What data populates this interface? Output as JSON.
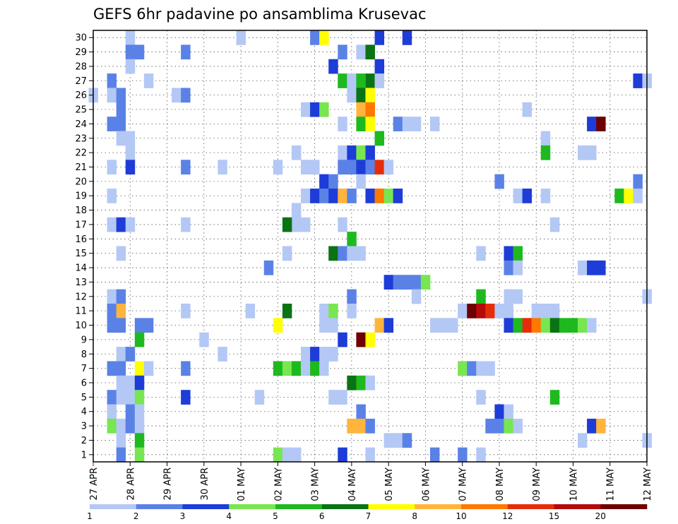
{
  "chart_data": {
    "type": "heatmap",
    "title": "GEFS 6hr padavine po ansamblima Krusevac",
    "xlabel": "",
    "ylabel": "",
    "x_tick_labels": [
      "27 APR",
      "28 APR",
      "29 APR",
      "30 APR",
      "01 MAY",
      "02 MAY",
      "03 MAY",
      "04 MAY",
      "05 MAY",
      "06 MAY",
      "07 MAY",
      "08 MAY",
      "09 MAY",
      "10 MAY",
      "11 MAY",
      "12 MAY"
    ],
    "y_tick_labels": [
      "1",
      "2",
      "3",
      "4",
      "5",
      "6",
      "7",
      "8",
      "9",
      "10",
      "11",
      "12",
      "13",
      "14",
      "15",
      "16",
      "17",
      "18",
      "19",
      "20",
      "21",
      "22",
      "23",
      "24",
      "25",
      "26",
      "27",
      "28",
      "29",
      "30"
    ],
    "x_unit": "6-hour step (0 = 27 APR 00Z)",
    "xlim": [
      0,
      60
    ],
    "ylim": [
      0.5,
      30.5
    ],
    "grid": true,
    "colorbar": {
      "labels": [
        "1",
        "2",
        "3",
        "4",
        "5",
        "6",
        "7",
        "8",
        "10",
        "12",
        "15",
        "20"
      ],
      "colors": [
        "#b4c8f5",
        "#5a82e6",
        "#1e3cd7",
        "#78e650",
        "#1eb91e",
        "#0a7314",
        "#ffff00",
        "#ffb43c",
        "#ff7800",
        "#e62d0a",
        "#b40a0a",
        "#6e0000"
      ]
    },
    "cells": [
      [
        4,
        30,
        1
      ],
      [
        16,
        30,
        1
      ],
      [
        24,
        30,
        2
      ],
      [
        25,
        30,
        7
      ],
      [
        31,
        30,
        3
      ],
      [
        34,
        30,
        3
      ],
      [
        4,
        29,
        2
      ],
      [
        5,
        29,
        2
      ],
      [
        10,
        29,
        2
      ],
      [
        27,
        29,
        2
      ],
      [
        29,
        29,
        1
      ],
      [
        30,
        29,
        6
      ],
      [
        4,
        28,
        1
      ],
      [
        26,
        28,
        3
      ],
      [
        31,
        28,
        3
      ],
      [
        2,
        27,
        2
      ],
      [
        6,
        27,
        1
      ],
      [
        27,
        27,
        5
      ],
      [
        28,
        27,
        1
      ],
      [
        30,
        27,
        6
      ],
      [
        29,
        27,
        5
      ],
      [
        31,
        27,
        1
      ],
      [
        59,
        27,
        3
      ],
      [
        60,
        27,
        1
      ],
      [
        0,
        26,
        1
      ],
      [
        2,
        26,
        1
      ],
      [
        3,
        26,
        2
      ],
      [
        9,
        26,
        1
      ],
      [
        10,
        26,
        2
      ],
      [
        28,
        26,
        1
      ],
      [
        29,
        26,
        6
      ],
      [
        30,
        26,
        7
      ],
      [
        3,
        25,
        2
      ],
      [
        23,
        25,
        1
      ],
      [
        24,
        25,
        3
      ],
      [
        25,
        25,
        4
      ],
      [
        29,
        25,
        8
      ],
      [
        30,
        25,
        9
      ],
      [
        47,
        25,
        1
      ],
      [
        2,
        24,
        2
      ],
      [
        3,
        24,
        2
      ],
      [
        27,
        24,
        1
      ],
      [
        29,
        24,
        5
      ],
      [
        30,
        24,
        7
      ],
      [
        33,
        24,
        2
      ],
      [
        34,
        24,
        1
      ],
      [
        35,
        24,
        1
      ],
      [
        37,
        24,
        1
      ],
      [
        54,
        24,
        3
      ],
      [
        55,
        24,
        12
      ],
      [
        3,
        23,
        1
      ],
      [
        4,
        23,
        1
      ],
      [
        31,
        23,
        5
      ],
      [
        49,
        23,
        1
      ],
      [
        4,
        22,
        1
      ],
      [
        22,
        22,
        1
      ],
      [
        27,
        22,
        1
      ],
      [
        28,
        22,
        3
      ],
      [
        29,
        22,
        4
      ],
      [
        30,
        22,
        3
      ],
      [
        49,
        22,
        5
      ],
      [
        53,
        22,
        1
      ],
      [
        54,
        22,
        1
      ],
      [
        2,
        21,
        1
      ],
      [
        4,
        21,
        3
      ],
      [
        10,
        21,
        2
      ],
      [
        14,
        21,
        1
      ],
      [
        20,
        21,
        1
      ],
      [
        23,
        21,
        1
      ],
      [
        24,
        21,
        1
      ],
      [
        27,
        21,
        2
      ],
      [
        28,
        21,
        2
      ],
      [
        29,
        21,
        3
      ],
      [
        30,
        21,
        2
      ],
      [
        31,
        21,
        10
      ],
      [
        32,
        21,
        1
      ],
      [
        25,
        20,
        3
      ],
      [
        26,
        20,
        2
      ],
      [
        29,
        20,
        1
      ],
      [
        44,
        20,
        2
      ],
      [
        59,
        20,
        2
      ],
      [
        2,
        19,
        1
      ],
      [
        23,
        19,
        1
      ],
      [
        24,
        19,
        3
      ],
      [
        25,
        19,
        2
      ],
      [
        26,
        19,
        3
      ],
      [
        27,
        19,
        8
      ],
      [
        28,
        19,
        2
      ],
      [
        30,
        19,
        3
      ],
      [
        31,
        19,
        9
      ],
      [
        32,
        19,
        4
      ],
      [
        33,
        19,
        3
      ],
      [
        46,
        19,
        1
      ],
      [
        47,
        19,
        3
      ],
      [
        49,
        19,
        1
      ],
      [
        57,
        19,
        5
      ],
      [
        58,
        19,
        7
      ],
      [
        59,
        19,
        1
      ],
      [
        22,
        18,
        1
      ],
      [
        2,
        17,
        1
      ],
      [
        3,
        17,
        3
      ],
      [
        4,
        17,
        1
      ],
      [
        10,
        17,
        1
      ],
      [
        22,
        17,
        1
      ],
      [
        23,
        17,
        1
      ],
      [
        21,
        17,
        6
      ],
      [
        27,
        17,
        1
      ],
      [
        50,
        17,
        1
      ],
      [
        28,
        16,
        5
      ],
      [
        3,
        15,
        1
      ],
      [
        21,
        15,
        1
      ],
      [
        26,
        15,
        6
      ],
      [
        27,
        15,
        2
      ],
      [
        28,
        15,
        1
      ],
      [
        29,
        15,
        1
      ],
      [
        42,
        15,
        1
      ],
      [
        45,
        15,
        3
      ],
      [
        46,
        15,
        5
      ],
      [
        19,
        14,
        2
      ],
      [
        45,
        14,
        2
      ],
      [
        46,
        14,
        1
      ],
      [
        53,
        14,
        1
      ],
      [
        54,
        14,
        3
      ],
      [
        55,
        14,
        3
      ],
      [
        32,
        13,
        3
      ],
      [
        33,
        13,
        2
      ],
      [
        34,
        13,
        2
      ],
      [
        35,
        13,
        2
      ],
      [
        36,
        13,
        4
      ],
      [
        2,
        12,
        1
      ],
      [
        3,
        12,
        2
      ],
      [
        28,
        12,
        2
      ],
      [
        35,
        12,
        1
      ],
      [
        42,
        12,
        5
      ],
      [
        45,
        12,
        1
      ],
      [
        46,
        12,
        1
      ],
      [
        60,
        12,
        1
      ],
      [
        2,
        11,
        2
      ],
      [
        3,
        11,
        8
      ],
      [
        10,
        11,
        1
      ],
      [
        17,
        11,
        1
      ],
      [
        21,
        11,
        6
      ],
      [
        25,
        11,
        1
      ],
      [
        26,
        11,
        4
      ],
      [
        28,
        11,
        1
      ],
      [
        40,
        11,
        1
      ],
      [
        41,
        11,
        12
      ],
      [
        42,
        11,
        11
      ],
      [
        43,
        11,
        10
      ],
      [
        44,
        11,
        1
      ],
      [
        45,
        11,
        1
      ],
      [
        48,
        11,
        1
      ],
      [
        49,
        11,
        1
      ],
      [
        50,
        11,
        1
      ],
      [
        2,
        10,
        2
      ],
      [
        3,
        10,
        2
      ],
      [
        5,
        10,
        2
      ],
      [
        6,
        10,
        2
      ],
      [
        20,
        10,
        7
      ],
      [
        25,
        10,
        1
      ],
      [
        26,
        10,
        1
      ],
      [
        31,
        10,
        8
      ],
      [
        32,
        10,
        3
      ],
      [
        37,
        10,
        1
      ],
      [
        38,
        10,
        1
      ],
      [
        39,
        10,
        1
      ],
      [
        45,
        10,
        3
      ],
      [
        46,
        10,
        5
      ],
      [
        47,
        10,
        10
      ],
      [
        48,
        10,
        9
      ],
      [
        49,
        10,
        4
      ],
      [
        50,
        10,
        6
      ],
      [
        51,
        10,
        5
      ],
      [
        52,
        10,
        5
      ],
      [
        53,
        10,
        4
      ],
      [
        54,
        10,
        1
      ],
      [
        5,
        9,
        5
      ],
      [
        12,
        9,
        1
      ],
      [
        27,
        9,
        3
      ],
      [
        29,
        9,
        12
      ],
      [
        30,
        9,
        7
      ],
      [
        3,
        8,
        1
      ],
      [
        4,
        8,
        2
      ],
      [
        14,
        8,
        1
      ],
      [
        23,
        8,
        1
      ],
      [
        24,
        8,
        3
      ],
      [
        25,
        8,
        1
      ],
      [
        26,
        8,
        1
      ],
      [
        2,
        7,
        2
      ],
      [
        3,
        7,
        2
      ],
      [
        5,
        7,
        7
      ],
      [
        6,
        7,
        1
      ],
      [
        10,
        7,
        2
      ],
      [
        20,
        7,
        5
      ],
      [
        21,
        7,
        4
      ],
      [
        22,
        7,
        5
      ],
      [
        23,
        7,
        1
      ],
      [
        24,
        7,
        5
      ],
      [
        25,
        7,
        1
      ],
      [
        40,
        7,
        4
      ],
      [
        41,
        7,
        2
      ],
      [
        42,
        7,
        1
      ],
      [
        43,
        7,
        1
      ],
      [
        3,
        6,
        1
      ],
      [
        4,
        6,
        1
      ],
      [
        5,
        6,
        3
      ],
      [
        28,
        6,
        6
      ],
      [
        29,
        6,
        5
      ],
      [
        30,
        6,
        1
      ],
      [
        2,
        5,
        2
      ],
      [
        3,
        5,
        1
      ],
      [
        4,
        5,
        1
      ],
      [
        5,
        5,
        4
      ],
      [
        10,
        5,
        3
      ],
      [
        18,
        5,
        1
      ],
      [
        26,
        5,
        1
      ],
      [
        27,
        5,
        1
      ],
      [
        42,
        5,
        1
      ],
      [
        50,
        5,
        5
      ],
      [
        2,
        4,
        1
      ],
      [
        4,
        4,
        2
      ],
      [
        5,
        4,
        1
      ],
      [
        29,
        4,
        2
      ],
      [
        44,
        4,
        3
      ],
      [
        45,
        4,
        1
      ],
      [
        2,
        3,
        4
      ],
      [
        3,
        3,
        1
      ],
      [
        4,
        3,
        2
      ],
      [
        5,
        3,
        1
      ],
      [
        28,
        3,
        8
      ],
      [
        29,
        3,
        8
      ],
      [
        30,
        3,
        2
      ],
      [
        43,
        3,
        2
      ],
      [
        44,
        3,
        2
      ],
      [
        45,
        3,
        4
      ],
      [
        46,
        3,
        1
      ],
      [
        54,
        3,
        3
      ],
      [
        55,
        3,
        8
      ],
      [
        3,
        2,
        1
      ],
      [
        5,
        2,
        5
      ],
      [
        32,
        2,
        1
      ],
      [
        33,
        2,
        1
      ],
      [
        34,
        2,
        2
      ],
      [
        53,
        2,
        1
      ],
      [
        60,
        2,
        1
      ],
      [
        3,
        1,
        2
      ],
      [
        5,
        1,
        4
      ],
      [
        20,
        1,
        4
      ],
      [
        21,
        1,
        1
      ],
      [
        22,
        1,
        1
      ],
      [
        27,
        1,
        3
      ],
      [
        30,
        1,
        1
      ],
      [
        37,
        1,
        2
      ],
      [
        40,
        1,
        2
      ],
      [
        42,
        1,
        1
      ]
    ]
  }
}
